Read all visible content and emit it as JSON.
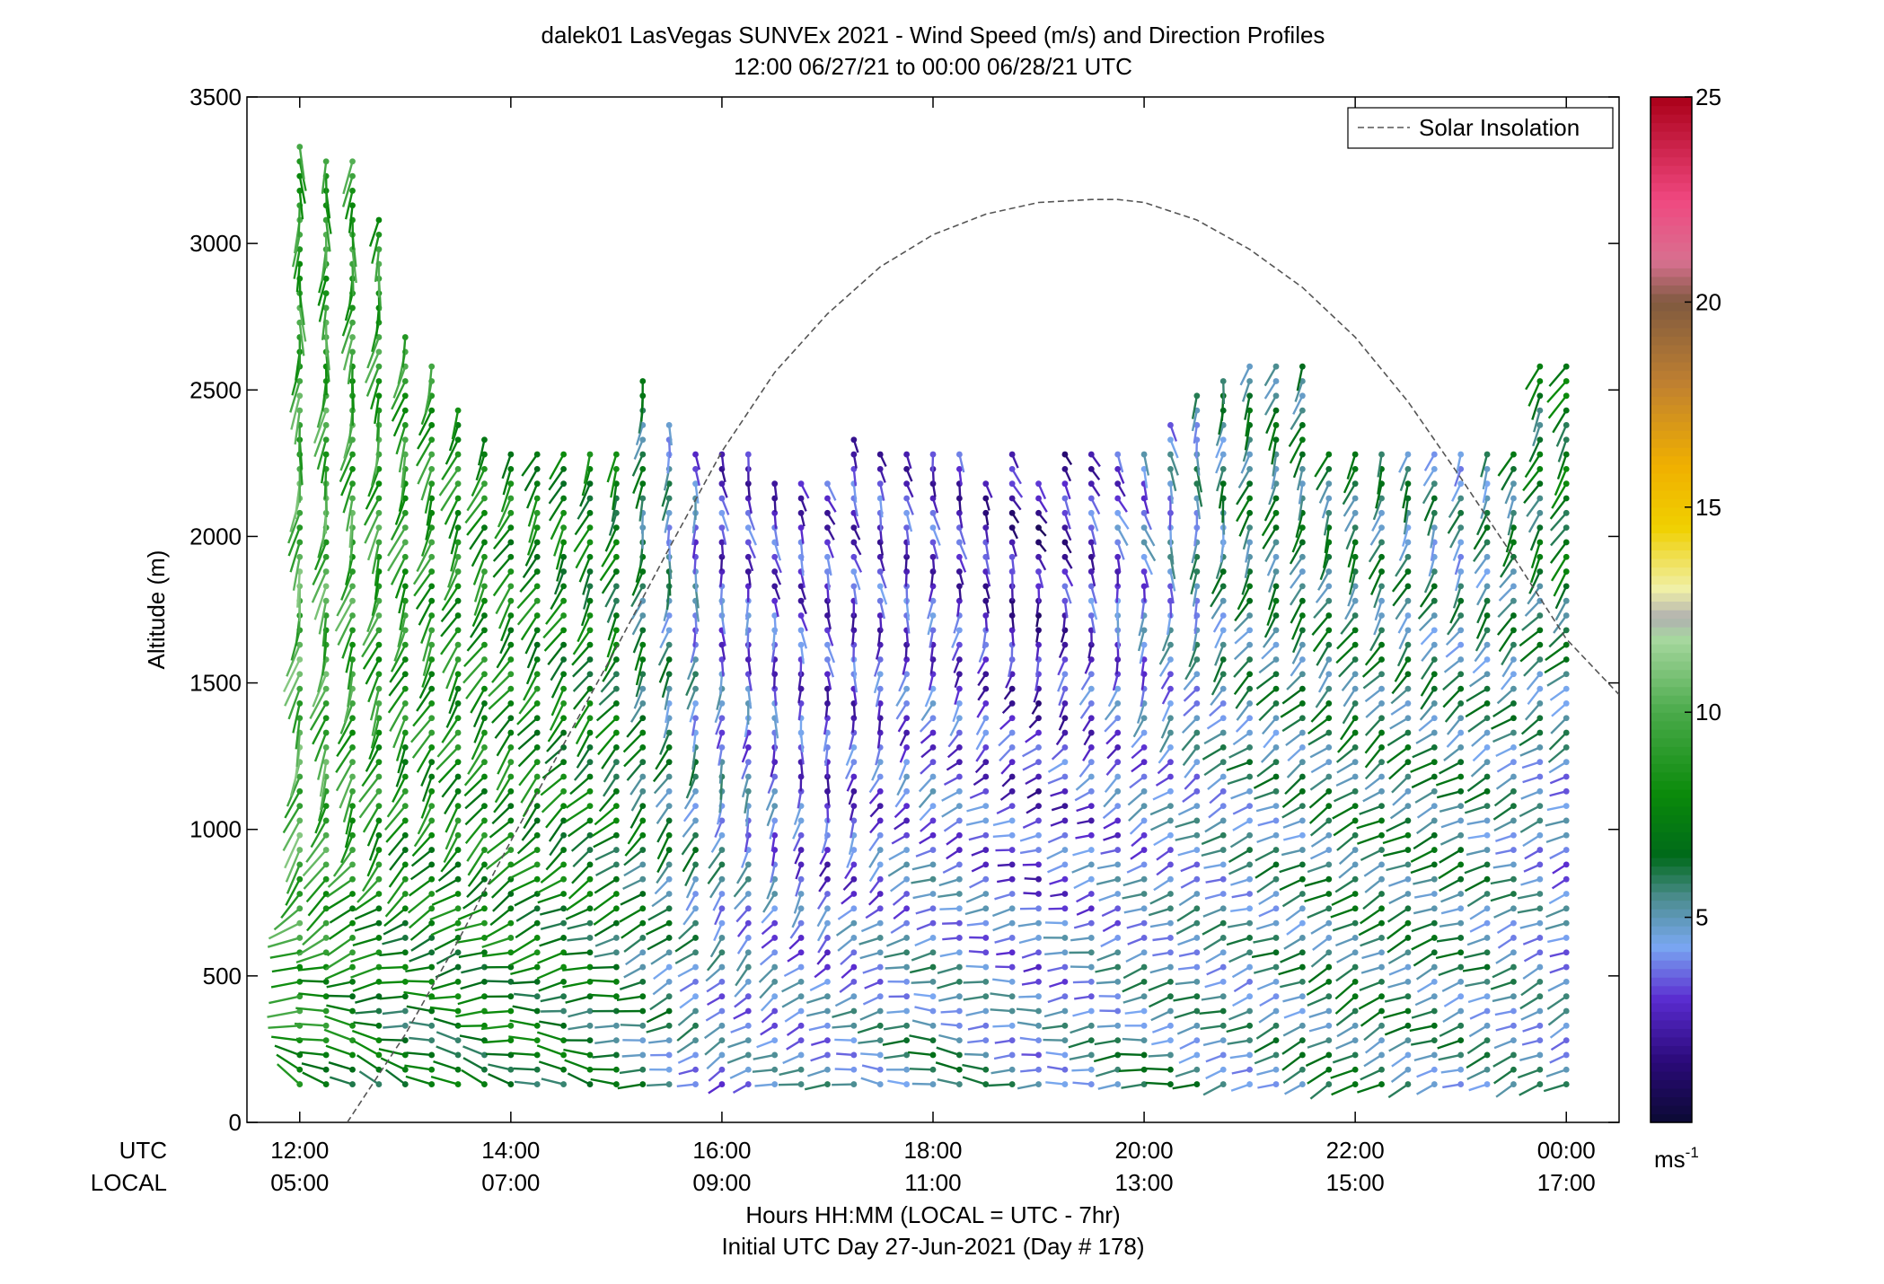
{
  "chart_data": {
    "type": "wind-barb-profile",
    "title": "dalek01 LasVegas SUNVEx 2021 - Wind Speed (m/s) and Direction Profiles",
    "subtitle": "12:00 06/27/21 to 00:00 06/28/21  UTC",
    "xlabel": "Hours HH:MM  (LOCAL = UTC - 7hr)",
    "xlabel2": "Initial UTC Day 27-Jun-2021 (Day # 178)",
    "ylabel": "Altitude (m)",
    "utc_row_label": "UTC",
    "local_row_label": "LOCAL",
    "xlim_hours_utc": [
      11.5,
      24.5
    ],
    "ylim": [
      0,
      3500
    ],
    "y_ticks": [
      0,
      500,
      1000,
      1500,
      2000,
      2500,
      3000,
      3500
    ],
    "x_ticks_utc": [
      "12:00",
      "14:00",
      "16:00",
      "18:00",
      "20:00",
      "22:00",
      "00:00"
    ],
    "x_ticks_local": [
      "05:00",
      "07:00",
      "09:00",
      "11:00",
      "13:00",
      "15:00",
      "17:00"
    ],
    "x_tick_hours": [
      12,
      14,
      16,
      18,
      20,
      22,
      24
    ],
    "legend": {
      "entries": [
        "Solar Insolation"
      ],
      "placement": "top-right"
    },
    "colorbar": {
      "min": 0,
      "max": 25,
      "ticks": [
        5,
        10,
        15,
        20,
        25
      ],
      "unit_label": "ms",
      "unit_exponent": "-1",
      "stops": [
        {
          "v": 0,
          "c": "#0b0a33"
        },
        {
          "v": 1.5,
          "c": "#2b0a7a"
        },
        {
          "v": 3,
          "c": "#5a2bd0"
        },
        {
          "v": 4.3,
          "c": "#7aa8f2"
        },
        {
          "v": 5.5,
          "c": "#4a8c8c"
        },
        {
          "v": 6.5,
          "c": "#006a1a"
        },
        {
          "v": 8,
          "c": "#0a8a0a"
        },
        {
          "v": 10,
          "c": "#4aaa4a"
        },
        {
          "v": 11.8,
          "c": "#a8d8a0"
        },
        {
          "v": 12.3,
          "c": "#b0b0b0"
        },
        {
          "v": 13,
          "c": "#f0f0a8"
        },
        {
          "v": 14.5,
          "c": "#f0d000"
        },
        {
          "v": 16,
          "c": "#f0b000"
        },
        {
          "v": 18,
          "c": "#c08030"
        },
        {
          "v": 20,
          "c": "#805a40"
        },
        {
          "v": 21,
          "c": "#d87090"
        },
        {
          "v": 22.5,
          "c": "#f04880"
        },
        {
          "v": 25,
          "c": "#aa0018"
        }
      ]
    },
    "solar_insolation": {
      "line_style": "dashed",
      "color": "#555555",
      "hours_utc": [
        12.45,
        13.0,
        13.5,
        14.0,
        14.5,
        15.0,
        15.5,
        16.0,
        16.5,
        17.0,
        17.5,
        18.0,
        18.5,
        19.0,
        19.5,
        19.75,
        20.0,
        20.5,
        21.0,
        21.5,
        22.0,
        22.5,
        23.0,
        23.5,
        24.0,
        24.5
      ],
      "altitude_equiv_m": [
        0,
        300,
        620,
        960,
        1290,
        1620,
        1960,
        2290,
        2560,
        2760,
        2920,
        3030,
        3100,
        3140,
        3150,
        3150,
        3140,
        3080,
        2980,
        2850,
        2680,
        2460,
        2200,
        1930,
        1650,
        1460
      ]
    },
    "profiles_summary": {
      "interval_minutes": 15,
      "start_hour_utc": 12.0,
      "end_hour_utc": 24.0,
      "lowest_gate_m": 130,
      "gate_spacing_m": 50,
      "max_altitude_m": [
        3340,
        3300,
        3300,
        3100,
        2700,
        2600,
        2450,
        2350,
        2300,
        2300,
        2300,
        2300,
        2300,
        2550,
        2400,
        2300,
        2300,
        2300,
        2200,
        2200,
        2200,
        2350,
        2300,
        2300,
        2300,
        2300,
        2200,
        2300,
        2200,
        2300,
        2300,
        2300,
        2300,
        2400,
        2500,
        2550,
        2600,
        2600,
        2600,
        2300,
        2300,
        2300,
        2300,
        2300,
        2300,
        2300,
        2300,
        2600,
        2600
      ],
      "speed_m_s": {
        "hour_utc": [
          12,
          13,
          14,
          15,
          16,
          17,
          18,
          19,
          20,
          21,
          22,
          23,
          24
        ],
        "surface": [
          8,
          6,
          7,
          6,
          4,
          5,
          6,
          5,
          6,
          5,
          6,
          5,
          5
        ],
        "1000m": [
          10,
          8,
          8,
          7,
          5,
          3,
          4,
          3,
          4,
          5,
          6,
          6,
          4
        ],
        "2000m": [
          10,
          9,
          8,
          7,
          3,
          3,
          3,
          2,
          4,
          6,
          6,
          5,
          7
        ],
        "3000m": [
          9,
          9,
          8,
          null,
          null,
          null,
          null,
          null,
          null,
          null,
          null,
          null,
          null
        ]
      },
      "direction_deg_from": {
        "hour_utc": [
          12,
          13,
          14,
          15,
          16,
          17,
          18,
          19,
          20,
          21,
          22,
          23,
          24
        ],
        "surface": [
          315,
          310,
          300,
          290,
          250,
          280,
          290,
          270,
          270,
          250,
          240,
          250,
          240
        ],
        "1000m": [
          200,
          210,
          220,
          230,
          200,
          190,
          240,
          260,
          240,
          250,
          240,
          250,
          250
        ],
        "2000m": [
          190,
          200,
          210,
          200,
          170,
          160,
          170,
          150,
          160,
          200,
          200,
          200,
          210
        ],
        "3000m": [
          180,
          190,
          200,
          null,
          null,
          null,
          null,
          null,
          null,
          null,
          null,
          null,
          null
        ]
      }
    }
  }
}
